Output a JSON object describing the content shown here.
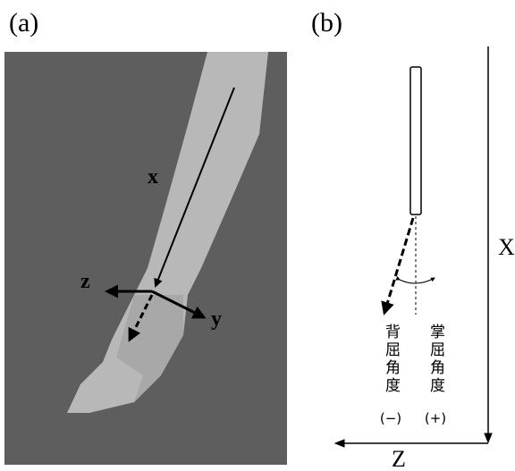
{
  "panel_a": {
    "label": "(a)",
    "axis_x": "x",
    "axis_z": "z",
    "axis_y": "y"
  },
  "panel_b": {
    "label": "(b)",
    "axis_x": "X",
    "axis_z": "Z",
    "left_label": "背屈角度",
    "right_label": "掌屈角度",
    "left_sign": "(−)",
    "right_sign": "(+)"
  }
}
